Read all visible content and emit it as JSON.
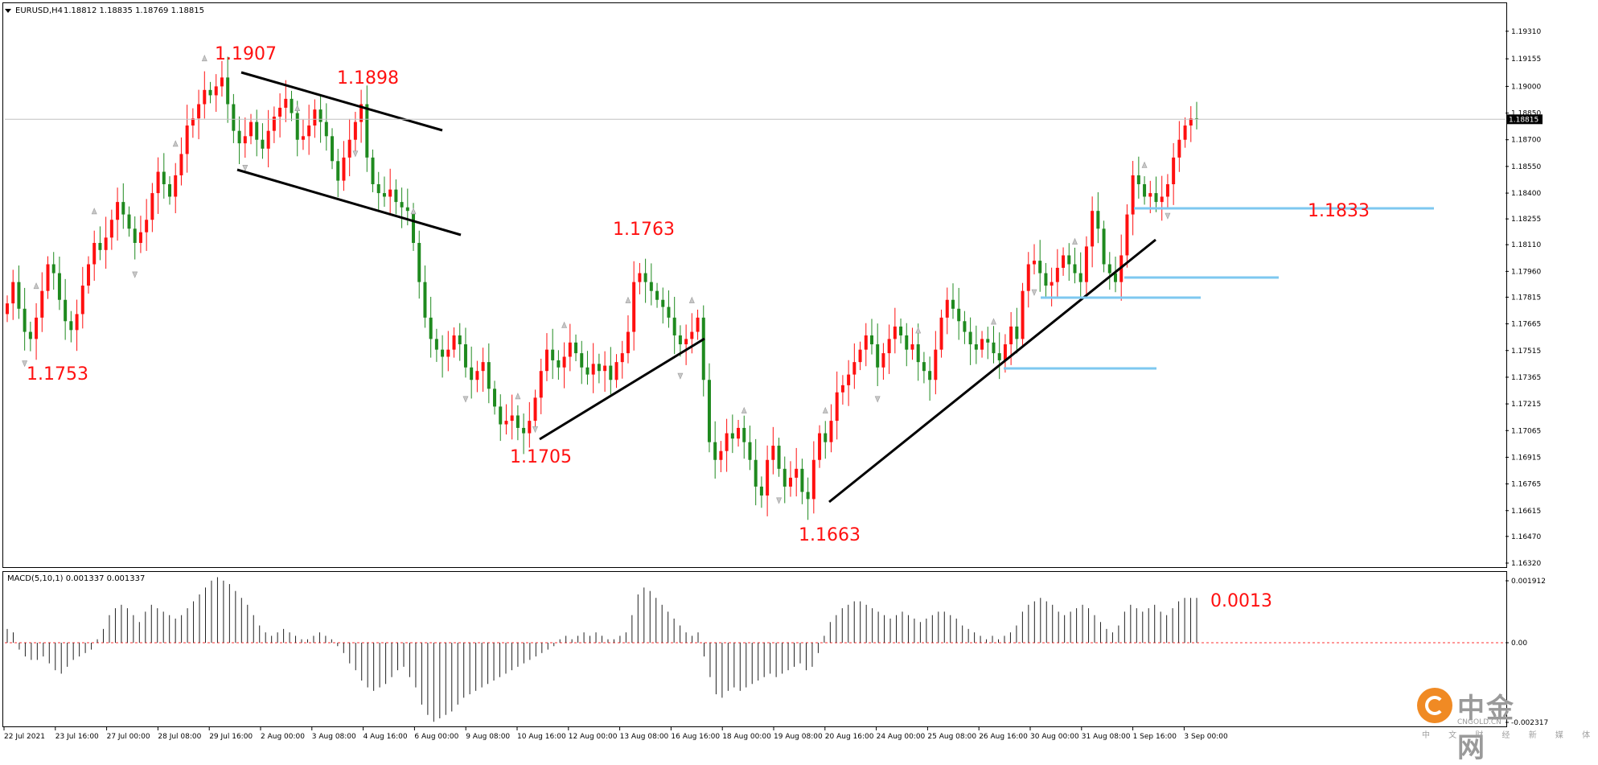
{
  "header": {
    "symbol": "EURUSD,H4",
    "ohlc": "1.18812 1.18835 1.18769 1.18815"
  },
  "chart_data": [
    {
      "type": "candlestick",
      "symbol": "EURUSD",
      "timeframe": "H4",
      "ylim": [
        1.1632,
        1.1935
      ],
      "y_ticks": [
        "1.19310",
        "1.19155",
        "1.19000",
        "1.18850",
        "1.18700",
        "1.18550",
        "1.18400",
        "1.18255",
        "1.18110",
        "1.17960",
        "1.17815",
        "1.17665",
        "1.17515",
        "1.17365",
        "1.17215",
        "1.17065",
        "1.16915",
        "1.16765",
        "1.16615",
        "1.16470",
        "1.16320"
      ],
      "x_ticks": [
        "22 Jul 2021",
        "23 Jul 16:00",
        "27 Jul 00:00",
        "28 Jul 08:00",
        "29 Jul 16:00",
        "2 Aug 00:00",
        "3 Aug 08:00",
        "4 Aug 16:00",
        "6 Aug 00:00",
        "9 Aug 08:00",
        "10 Aug 16:00",
        "12 Aug 00:00",
        "13 Aug 08:00",
        "16 Aug 16:00",
        "18 Aug 00:00",
        "19 Aug 08:00",
        "20 Aug 16:00",
        "24 Aug 00:00",
        "25 Aug 08:00",
        "26 Aug 16:00",
        "30 Aug 00:00",
        "31 Aug 08:00",
        "1 Sep 16:00",
        "3 Sep 00:00"
      ],
      "current_price": "1.18815",
      "closes": [
        1.1778,
        1.179,
        1.1775,
        1.1762,
        1.1758,
        1.177,
        1.1785,
        1.18,
        1.1795,
        1.178,
        1.1768,
        1.1763,
        1.1772,
        1.1788,
        1.18,
        1.1812,
        1.1808,
        1.1815,
        1.1825,
        1.1835,
        1.1828,
        1.182,
        1.1812,
        1.1818,
        1.1825,
        1.184,
        1.1852,
        1.1845,
        1.1838,
        1.185,
        1.1862,
        1.1878,
        1.1882,
        1.189,
        1.1898,
        1.1895,
        1.19,
        1.1905,
        1.189,
        1.1875,
        1.1868,
        1.1872,
        1.188,
        1.187,
        1.1865,
        1.1875,
        1.1883,
        1.1888,
        1.1893,
        1.1885,
        1.187,
        1.1872,
        1.1878,
        1.1887,
        1.188,
        1.1872,
        1.1858,
        1.1847,
        1.186,
        1.187,
        1.188,
        1.189,
        1.186,
        1.1845,
        1.184,
        1.1838,
        1.1842,
        1.1835,
        1.1832,
        1.183,
        1.1812,
        1.179,
        1.177,
        1.1758,
        1.1752,
        1.1748,
        1.1752,
        1.176,
        1.1755,
        1.1742,
        1.1735,
        1.174,
        1.1745,
        1.173,
        1.172,
        1.171,
        1.1712,
        1.1715,
        1.1708,
        1.1705,
        1.1712,
        1.1725,
        1.174,
        1.1752,
        1.1746,
        1.1742,
        1.1748,
        1.1756,
        1.175,
        1.1742,
        1.1738,
        1.1744,
        1.174,
        1.1743,
        1.1735,
        1.1745,
        1.175,
        1.1762,
        1.179,
        1.1795,
        1.179,
        1.1785,
        1.178,
        1.1776,
        1.177,
        1.176,
        1.1755,
        1.1758,
        1.1762,
        1.177,
        1.1735,
        1.17,
        1.169,
        1.1695,
        1.1705,
        1.1702,
        1.1708,
        1.17,
        1.169,
        1.1675,
        1.167,
        1.169,
        1.1698,
        1.1685,
        1.1675,
        1.168,
        1.1685,
        1.1672,
        1.1668,
        1.169,
        1.1705,
        1.17,
        1.1712,
        1.1728,
        1.1732,
        1.1738,
        1.1745,
        1.1752,
        1.176,
        1.1755,
        1.1742,
        1.175,
        1.1758,
        1.1765,
        1.176,
        1.1752,
        1.1755,
        1.1745,
        1.174,
        1.1735,
        1.1752,
        1.177,
        1.178,
        1.1775,
        1.1768,
        1.1762,
        1.1755,
        1.1752,
        1.1758,
        1.1756,
        1.175,
        1.1746,
        1.1755,
        1.1765,
        1.1758,
        1.1785,
        1.18,
        1.1802,
        1.1795,
        1.1788,
        1.179,
        1.1798,
        1.1805,
        1.18,
        1.1795,
        1.179,
        1.181,
        1.183,
        1.182,
        1.18,
        1.1795,
        1.179,
        1.1805,
        1.1828,
        1.185,
        1.1845,
        1.1838,
        1.184,
        1.1835,
        1.1838,
        1.1845,
        1.186,
        1.187,
        1.1878,
        1.1882,
        1.18815
      ],
      "markers": [
        {
          "label": "1.1907",
          "price": 1.1907
        },
        {
          "label": "1.1898",
          "price": 1.1898
        },
        {
          "label": "1.1753",
          "price": 1.1753
        },
        {
          "label": "1.1763",
          "price": 1.1763
        },
        {
          "label": "1.1705",
          "price": 1.1705
        },
        {
          "label": "1.1663",
          "price": 1.1663
        },
        {
          "label": "1.1833",
          "price": 1.1833
        }
      ],
      "annotation_color": "#ff1010",
      "bull_color": "#ff1010",
      "bear_color": "#1f8a1f",
      "level_line_color": "#7ec8f0",
      "grid": false
    },
    {
      "type": "histogram",
      "title": "MACD(5,10,1) 0.001337 0.001337",
      "y_ticks": [
        "0.001912",
        "0.00",
        "-0.002317"
      ],
      "ylim": [
        -0.002317,
        0.001912
      ],
      "last_value_label": "0.0013",
      "values": [
        0.0004,
        0.0003,
        -0.0002,
        -0.0004,
        -0.0005,
        -0.0005,
        -0.0004,
        -0.0006,
        -0.0008,
        -0.0009,
        -0.0007,
        -0.0005,
        -0.0004,
        -0.0003,
        -0.0002,
        0.0001,
        0.0004,
        0.0008,
        0.001,
        0.0011,
        0.001,
        0.0008,
        0.0006,
        0.0009,
        0.0011,
        0.001,
        0.0009,
        0.0008,
        0.0007,
        0.0008,
        0.001,
        0.0012,
        0.0014,
        0.0016,
        0.0018,
        0.0019,
        0.0018,
        0.0017,
        0.0015,
        0.0013,
        0.0011,
        0.0008,
        0.0005,
        0.0003,
        0.0002,
        0.0003,
        0.0004,
        0.0003,
        0.0002,
        0.0001,
        0.0001,
        0.0002,
        0.0003,
        0.0002,
        0.0001,
        -0.0001,
        -0.0003,
        -0.0006,
        -0.0008,
        -0.0011,
        -0.0013,
        -0.0014,
        -0.0013,
        -0.0012,
        -0.001,
        -0.0008,
        -0.0007,
        -0.001,
        -0.0013,
        -0.0018,
        -0.0021,
        -0.0023,
        -0.0022,
        -0.0021,
        -0.002,
        -0.0018,
        -0.0016,
        -0.0015,
        -0.0014,
        -0.0013,
        -0.0012,
        -0.0011,
        -0.001,
        -0.0009,
        -0.0008,
        -0.0007,
        -0.0006,
        -0.0005,
        -0.0004,
        -0.0003,
        -0.0002,
        -0.0001,
        0.0001,
        0.0002,
        0.0001,
        0.0002,
        0.0003,
        0.0002,
        0.0003,
        0.0002,
        0.0001,
        0.0001,
        0.0002,
        0.0003,
        0.0008,
        0.0014,
        0.0016,
        0.0015,
        0.0013,
        0.0011,
        0.0009,
        0.0007,
        0.0005,
        0.0003,
        0.0002,
        0.0003,
        -0.0004,
        -0.001,
        -0.0015,
        -0.0016,
        -0.0014,
        -0.0013,
        -0.0014,
        -0.0013,
        -0.0012,
        -0.0011,
        -0.001,
        -0.0009,
        -0.001,
        -0.0009,
        -0.0008,
        -0.0007,
        -0.0006,
        -0.0008,
        -0.0007,
        -0.0003,
        0.0002,
        0.0006,
        0.0008,
        0.001,
        0.0011,
        0.0012,
        0.0012,
        0.0011,
        0.001,
        0.0009,
        0.0008,
        0.0007,
        0.0008,
        0.0009,
        0.0008,
        0.0007,
        0.0006,
        0.0007,
        0.0008,
        0.0009,
        0.0009,
        0.0008,
        0.0007,
        0.0005,
        0.0004,
        0.0003,
        0.0002,
        0.0001,
        0.0002,
        0.0001,
        0.0002,
        0.0003,
        0.0005,
        0.0009,
        0.0011,
        0.0012,
        0.0013,
        0.0012,
        0.0011,
        0.0009,
        0.0008,
        0.0009,
        0.001,
        0.0011,
        0.001,
        0.0008,
        0.0006,
        0.0004,
        0.0003,
        0.0005,
        0.0009,
        0.0011,
        0.001,
        0.0009,
        0.001,
        0.0011,
        0.0009,
        0.0008,
        0.001,
        0.0012,
        0.0013,
        0.0013,
        0.0013
      ]
    }
  ],
  "watermark": {
    "cn": "中金网",
    "en": "CNGOLD.CN",
    "sub": "中 文 财 经 新 媒 体"
  }
}
